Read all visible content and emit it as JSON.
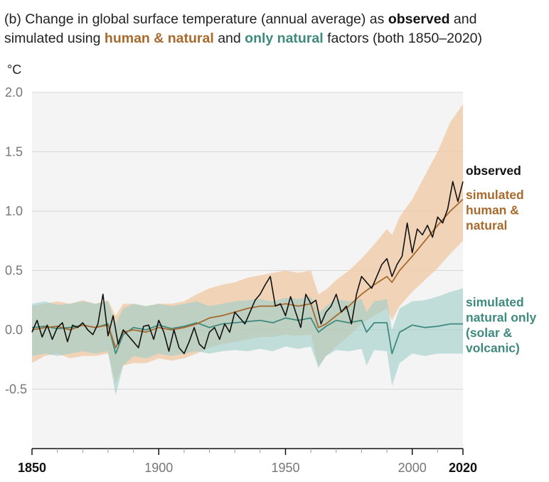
{
  "title": {
    "part1": "(b) Change in global surface temperature (annual average) as ",
    "observed": "observed",
    "part2": " and",
    "part3": "simulated using ",
    "human_natural": "human & natural",
    "part4": " and ",
    "only_natural": "only natural",
    "part5": " factors (both 1850–2020)"
  },
  "colors": {
    "observed": "#111111",
    "human_natural_line": "#a86a2c",
    "human_natural_band": "#f0c9a4",
    "natural_line": "#3f8a7e",
    "natural_band": "#9ccdc6",
    "plot_bg": "#f4f4f4",
    "grid": "#d6d6d6"
  },
  "chart_data": {
    "type": "line",
    "ylabel": "°C",
    "xlim": [
      1850,
      2020
    ],
    "ylim": [
      -1.0,
      2.0
    ],
    "grid": true,
    "y_ticks": [
      {
        "value": 2.0,
        "label": "2.0"
      },
      {
        "value": 1.5,
        "label": "1.5"
      },
      {
        "value": 1.0,
        "label": "1.0"
      },
      {
        "value": 0.5,
        "label": "0.5"
      },
      {
        "value": 0.0,
        "label": "0.0"
      },
      {
        "value": -0.5,
        "label": "-0.5"
      }
    ],
    "x_ticks": [
      {
        "value": 1850,
        "label": "1850",
        "bold": true
      },
      {
        "value": 1900,
        "label": "1900",
        "bold": false
      },
      {
        "value": 1950,
        "label": "1950",
        "bold": false
      },
      {
        "value": 2000,
        "label": "2000",
        "bold": false
      },
      {
        "value": 2020,
        "label": "2020",
        "bold": true
      }
    ],
    "series": [
      {
        "name": "observed",
        "label_lines": [
          "observed"
        ],
        "x": [
          1850,
          1852,
          1854,
          1856,
          1858,
          1860,
          1862,
          1864,
          1866,
          1868,
          1870,
          1872,
          1874,
          1876,
          1878,
          1880,
          1882,
          1884,
          1886,
          1888,
          1890,
          1892,
          1894,
          1896,
          1898,
          1900,
          1902,
          1904,
          1906,
          1908,
          1910,
          1912,
          1914,
          1916,
          1918,
          1920,
          1922,
          1924,
          1926,
          1928,
          1930,
          1932,
          1934,
          1936,
          1938,
          1940,
          1942,
          1944,
          1946,
          1948,
          1950,
          1952,
          1954,
          1956,
          1958,
          1960,
          1962,
          1964,
          1966,
          1968,
          1970,
          1972,
          1974,
          1976,
          1978,
          1980,
          1982,
          1984,
          1986,
          1988,
          1990,
          1992,
          1994,
          1996,
          1998,
          2000,
          2002,
          2004,
          2006,
          2008,
          2010,
          2012,
          2014,
          2016,
          2018,
          2020
        ],
        "y": [
          -0.02,
          0.08,
          -0.06,
          0.04,
          -0.08,
          0.02,
          0.06,
          -0.1,
          0.04,
          0.02,
          0.06,
          0.0,
          -0.04,
          0.05,
          0.3,
          -0.05,
          0.12,
          -0.12,
          0.0,
          -0.05,
          -0.1,
          -0.15,
          0.03,
          0.04,
          -0.08,
          0.08,
          -0.02,
          -0.18,
          0.0,
          -0.15,
          -0.2,
          -0.1,
          0.02,
          -0.12,
          -0.16,
          -0.02,
          0.02,
          -0.08,
          0.05,
          -0.02,
          0.15,
          0.1,
          0.05,
          0.15,
          0.25,
          0.3,
          0.38,
          0.45,
          0.2,
          0.22,
          0.12,
          0.28,
          0.15,
          0.02,
          0.3,
          0.22,
          0.25,
          0.05,
          0.15,
          0.2,
          0.3,
          0.15,
          0.2,
          0.05,
          0.3,
          0.45,
          0.4,
          0.35,
          0.45,
          0.55,
          0.6,
          0.45,
          0.55,
          0.62,
          0.9,
          0.65,
          0.85,
          0.8,
          0.88,
          0.78,
          0.95,
          0.9,
          1.02,
          1.25,
          1.08,
          1.25
        ]
      },
      {
        "name": "simulated human & natural",
        "label_lines": [
          "simulated",
          "human &",
          "natural"
        ],
        "x": [
          1850,
          1855,
          1860,
          1865,
          1870,
          1875,
          1880,
          1883,
          1886,
          1890,
          1895,
          1900,
          1905,
          1910,
          1915,
          1920,
          1925,
          1930,
          1935,
          1940,
          1945,
          1950,
          1955,
          1960,
          1963,
          1966,
          1970,
          1975,
          1980,
          1985,
          1990,
          1992,
          1995,
          2000,
          2005,
          2010,
          2015,
          2020
        ],
        "y": [
          0.0,
          0.02,
          0.03,
          0.0,
          0.04,
          0.02,
          0.04,
          -0.15,
          -0.02,
          0.0,
          -0.02,
          0.02,
          0.0,
          0.02,
          0.05,
          0.1,
          0.12,
          0.15,
          0.18,
          0.2,
          0.2,
          0.22,
          0.2,
          0.22,
          0.02,
          0.05,
          0.12,
          0.2,
          0.3,
          0.38,
          0.45,
          0.4,
          0.5,
          0.62,
          0.75,
          0.88,
          1.0,
          1.1
        ],
        "band_low": [
          -0.28,
          -0.22,
          -0.2,
          -0.24,
          -0.22,
          -0.22,
          -0.2,
          -0.45,
          -0.3,
          -0.28,
          -0.28,
          -0.24,
          -0.26,
          -0.24,
          -0.2,
          -0.15,
          -0.12,
          -0.1,
          -0.08,
          -0.06,
          -0.06,
          -0.04,
          -0.05,
          -0.04,
          -0.3,
          -0.22,
          -0.14,
          -0.05,
          0.05,
          0.12,
          0.18,
          0.08,
          0.2,
          0.32,
          0.42,
          0.52,
          0.64,
          0.75
        ],
        "band_high": [
          0.2,
          0.22,
          0.24,
          0.22,
          0.25,
          0.22,
          0.25,
          0.12,
          0.22,
          0.22,
          0.2,
          0.22,
          0.22,
          0.24,
          0.3,
          0.35,
          0.38,
          0.4,
          0.44,
          0.46,
          0.48,
          0.5,
          0.48,
          0.5,
          0.3,
          0.34,
          0.42,
          0.5,
          0.6,
          0.72,
          0.85,
          0.8,
          0.95,
          1.1,
          1.3,
          1.5,
          1.75,
          1.9
        ]
      },
      {
        "name": "simulated natural only (solar & volcanic)",
        "label_lines": [
          "simulated",
          "natural only",
          "(solar &",
          "volcanic)"
        ],
        "x": [
          1850,
          1855,
          1860,
          1865,
          1870,
          1875,
          1880,
          1883,
          1886,
          1890,
          1895,
          1900,
          1905,
          1910,
          1915,
          1920,
          1925,
          1930,
          1935,
          1940,
          1945,
          1950,
          1955,
          1960,
          1963,
          1966,
          1970,
          1975,
          1980,
          1982,
          1985,
          1990,
          1992,
          1995,
          2000,
          2005,
          2010,
          2015,
          2020
        ],
        "y": [
          0.02,
          0.03,
          0.01,
          0.02,
          0.04,
          0.02,
          0.05,
          -0.2,
          -0.04,
          0.02,
          0.0,
          0.04,
          0.01,
          0.03,
          0.06,
          0.02,
          0.05,
          0.06,
          0.07,
          0.08,
          0.06,
          0.1,
          0.08,
          0.1,
          -0.02,
          0.03,
          0.08,
          0.06,
          0.08,
          -0.02,
          0.06,
          0.06,
          -0.2,
          -0.02,
          0.04,
          0.02,
          0.03,
          0.05,
          0.05
        ],
        "band_low": [
          -0.22,
          -0.2,
          -0.22,
          -0.2,
          -0.18,
          -0.2,
          -0.18,
          -0.55,
          -0.3,
          -0.22,
          -0.24,
          -0.2,
          -0.22,
          -0.2,
          -0.18,
          -0.2,
          -0.18,
          -0.17,
          -0.18,
          -0.16,
          -0.18,
          -0.14,
          -0.16,
          -0.14,
          -0.32,
          -0.22,
          -0.17,
          -0.18,
          -0.16,
          -0.3,
          -0.17,
          -0.18,
          -0.47,
          -0.28,
          -0.2,
          -0.22,
          -0.2,
          -0.2,
          -0.2
        ],
        "band_high": [
          0.22,
          0.24,
          0.21,
          0.22,
          0.24,
          0.22,
          0.24,
          0.05,
          0.18,
          0.22,
          0.2,
          0.22,
          0.2,
          0.22,
          0.24,
          0.2,
          0.22,
          0.24,
          0.25,
          0.26,
          0.24,
          0.27,
          0.26,
          0.28,
          0.14,
          0.2,
          0.26,
          0.24,
          0.26,
          0.15,
          0.24,
          0.26,
          0.0,
          0.18,
          0.24,
          0.25,
          0.28,
          0.32,
          0.35
        ]
      }
    ]
  }
}
